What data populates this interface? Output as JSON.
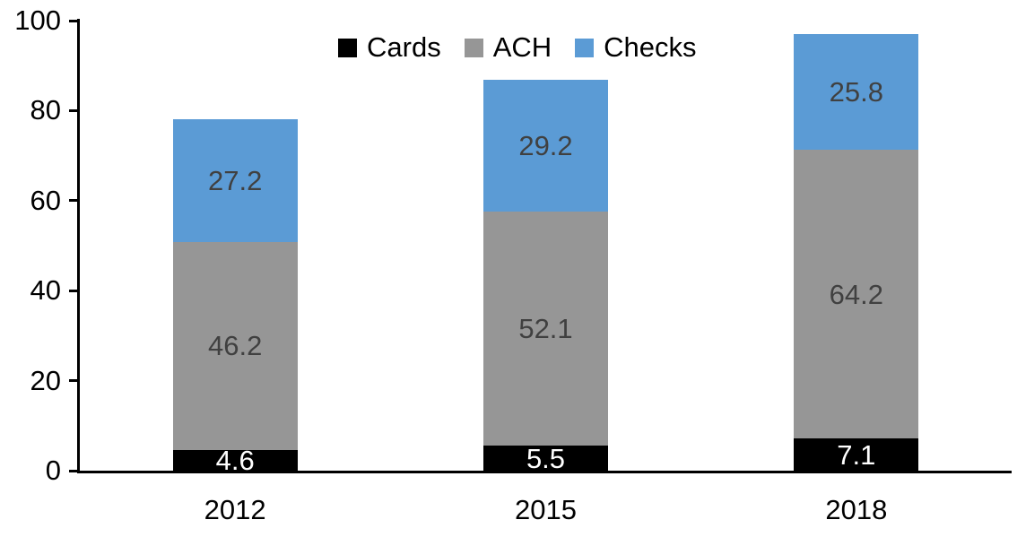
{
  "chart_data": {
    "type": "bar",
    "stacked": true,
    "title": "",
    "categories": [
      "2012",
      "2015",
      "2018"
    ],
    "series": [
      {
        "name": "Cards",
        "color": "#000000",
        "label_color": "#ffffff",
        "values": [
          4.6,
          5.5,
          7.1
        ]
      },
      {
        "name": "ACH",
        "color": "#969696",
        "label_color": "#404040",
        "values": [
          46.2,
          52.1,
          64.2
        ]
      },
      {
        "name": "Checks",
        "color": "#5B9BD5",
        "label_color": "#404040",
        "values": [
          27.2,
          29.2,
          25.8
        ]
      }
    ],
    "totals": [
      78.0,
      86.8,
      97.1
    ],
    "xlabel": "",
    "ylabel": "",
    "y_axis": {
      "min": 0,
      "max": 100,
      "tick_interval": 20,
      "ticks": [
        0,
        20,
        40,
        60,
        80,
        100
      ]
    },
    "legend": {
      "position": "top-center",
      "entries": [
        "Cards",
        "ACH",
        "Checks"
      ]
    },
    "grid": false,
    "axis_color": "#000000",
    "background_color": "#ffffff"
  }
}
